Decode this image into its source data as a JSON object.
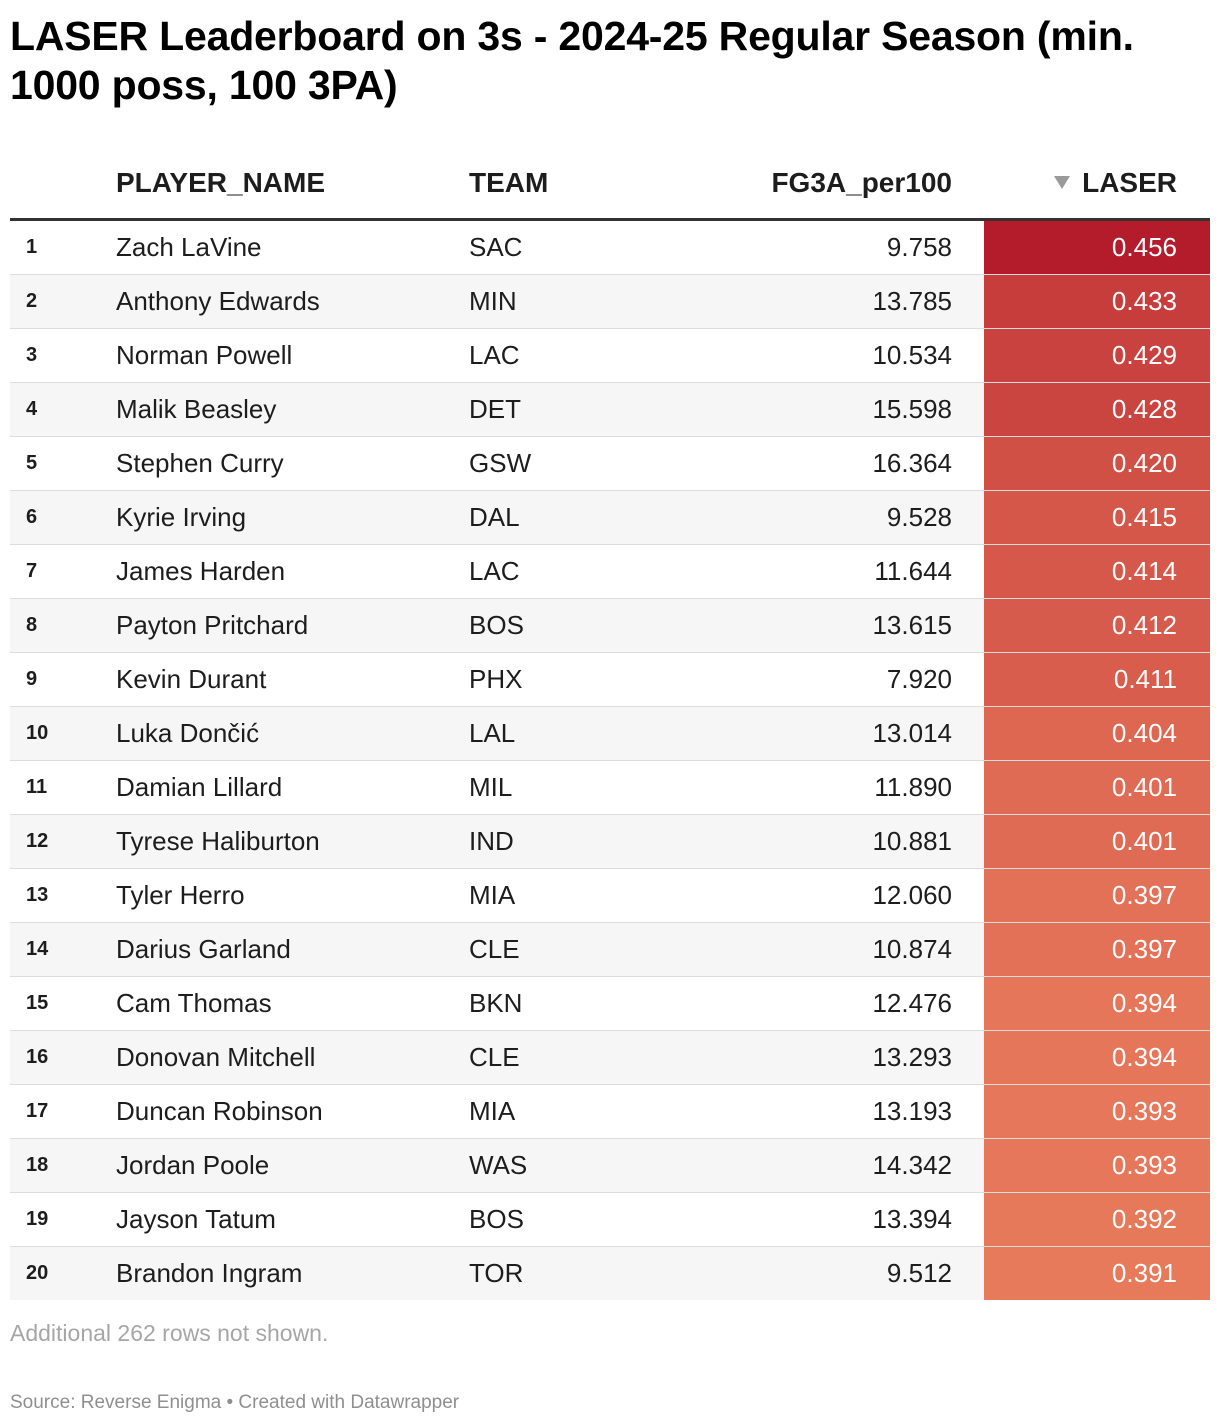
{
  "title": "LASER Leaderboard on 3s - 2024-25 Regular Season (min. 1000 poss, 100 3PA)",
  "columns": {
    "player": "PLAYER_NAME",
    "team": "TEAM",
    "fg3a": "FG3A_per100",
    "laser": "LASER"
  },
  "sort_icon": "triangle-down-icon",
  "note": "Additional 262 rows not shown.",
  "footer": "Source: Reverse Enigma • Created with Datawrapper",
  "colors": {
    "scale_high": "#b41b2b",
    "scale_low": "#e87a5c"
  },
  "chart_data": {
    "type": "table",
    "columns": [
      "",
      "PLAYER_NAME",
      "TEAM",
      "FG3A_per100",
      "LASER"
    ],
    "sort": {
      "column": "LASER",
      "direction": "descending"
    },
    "rows": [
      {
        "rank": "1",
        "player": "Zach LaVine",
        "team": "SAC",
        "fg3a": "9.758",
        "laser": "0.456"
      },
      {
        "rank": "2",
        "player": "Anthony Edwards",
        "team": "MIN",
        "fg3a": "13.785",
        "laser": "0.433"
      },
      {
        "rank": "3",
        "player": "Norman Powell",
        "team": "LAC",
        "fg3a": "10.534",
        "laser": "0.429"
      },
      {
        "rank": "4",
        "player": "Malik Beasley",
        "team": "DET",
        "fg3a": "15.598",
        "laser": "0.428"
      },
      {
        "rank": "5",
        "player": "Stephen Curry",
        "team": "GSW",
        "fg3a": "16.364",
        "laser": "0.420"
      },
      {
        "rank": "6",
        "player": "Kyrie Irving",
        "team": "DAL",
        "fg3a": "9.528",
        "laser": "0.415"
      },
      {
        "rank": "7",
        "player": "James Harden",
        "team": "LAC",
        "fg3a": "11.644",
        "laser": "0.414"
      },
      {
        "rank": "8",
        "player": "Payton Pritchard",
        "team": "BOS",
        "fg3a": "13.615",
        "laser": "0.412"
      },
      {
        "rank": "9",
        "player": "Kevin Durant",
        "team": "PHX",
        "fg3a": "7.920",
        "laser": "0.411"
      },
      {
        "rank": "10",
        "player": "Luka Dončić",
        "team": "LAL",
        "fg3a": "13.014",
        "laser": "0.404"
      },
      {
        "rank": "11",
        "player": "Damian Lillard",
        "team": "MIL",
        "fg3a": "11.890",
        "laser": "0.401"
      },
      {
        "rank": "12",
        "player": "Tyrese Haliburton",
        "team": "IND",
        "fg3a": "10.881",
        "laser": "0.401"
      },
      {
        "rank": "13",
        "player": "Tyler Herro",
        "team": "MIA",
        "fg3a": "12.060",
        "laser": "0.397"
      },
      {
        "rank": "14",
        "player": "Darius Garland",
        "team": "CLE",
        "fg3a": "10.874",
        "laser": "0.397"
      },
      {
        "rank": "15",
        "player": "Cam Thomas",
        "team": "BKN",
        "fg3a": "12.476",
        "laser": "0.394"
      },
      {
        "rank": "16",
        "player": "Donovan Mitchell",
        "team": "CLE",
        "fg3a": "13.293",
        "laser": "0.394"
      },
      {
        "rank": "17",
        "player": "Duncan Robinson",
        "team": "MIA",
        "fg3a": "13.193",
        "laser": "0.393"
      },
      {
        "rank": "18",
        "player": "Jordan Poole",
        "team": "WAS",
        "fg3a": "14.342",
        "laser": "0.393"
      },
      {
        "rank": "19",
        "player": "Jayson Tatum",
        "team": "BOS",
        "fg3a": "13.394",
        "laser": "0.392"
      },
      {
        "rank": "20",
        "player": "Brandon Ingram",
        "team": "TOR",
        "fg3a": "9.512",
        "laser": "0.391"
      }
    ]
  }
}
